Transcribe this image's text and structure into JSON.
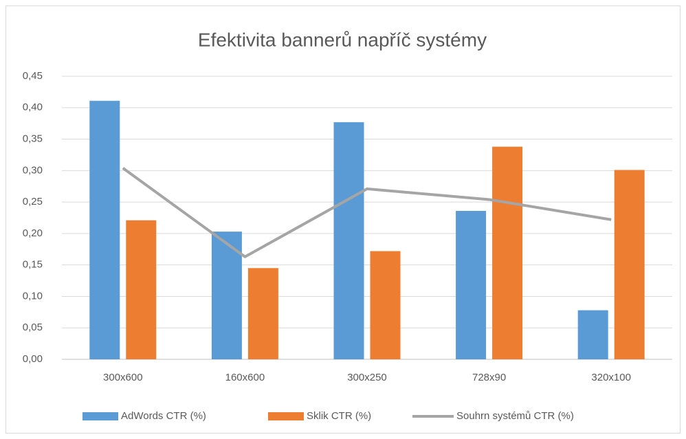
{
  "chart_data": {
    "type": "bar",
    "title": "Efektivita bannerů napříč systémy",
    "categories": [
      "300x600",
      "160x600",
      "300x250",
      "728x90",
      "320x100"
    ],
    "series": [
      {
        "name": "AdWords CTR (%)",
        "type": "bar",
        "color": "#5b9bd5",
        "values": [
          0.411,
          0.203,
          0.377,
          0.236,
          0.078
        ]
      },
      {
        "name": "Sklik CTR (%)",
        "type": "bar",
        "color": "#ed7d31",
        "values": [
          0.221,
          0.145,
          0.172,
          0.338,
          0.301
        ]
      },
      {
        "name": "Souhrn systémů CTR (%)",
        "type": "line",
        "color": "#a5a5a5",
        "values": [
          0.304,
          0.163,
          0.271,
          0.254,
          0.222
        ]
      }
    ],
    "ylim": [
      0,
      0.45
    ],
    "yticks": [
      {
        "value": 0,
        "label": "0,00"
      },
      {
        "value": 0.05,
        "label": "0,05"
      },
      {
        "value": 0.1,
        "label": "0,10"
      },
      {
        "value": 0.15,
        "label": "0,15"
      },
      {
        "value": 0.2,
        "label": "0,20"
      },
      {
        "value": 0.25,
        "label": "0,25"
      },
      {
        "value": 0.3,
        "label": "0,30"
      },
      {
        "value": 0.35,
        "label": "0,35"
      },
      {
        "value": 0.4,
        "label": "0,40"
      },
      {
        "value": 0.45,
        "label": "0,45"
      }
    ],
    "grid": true,
    "legend": "bottom"
  }
}
